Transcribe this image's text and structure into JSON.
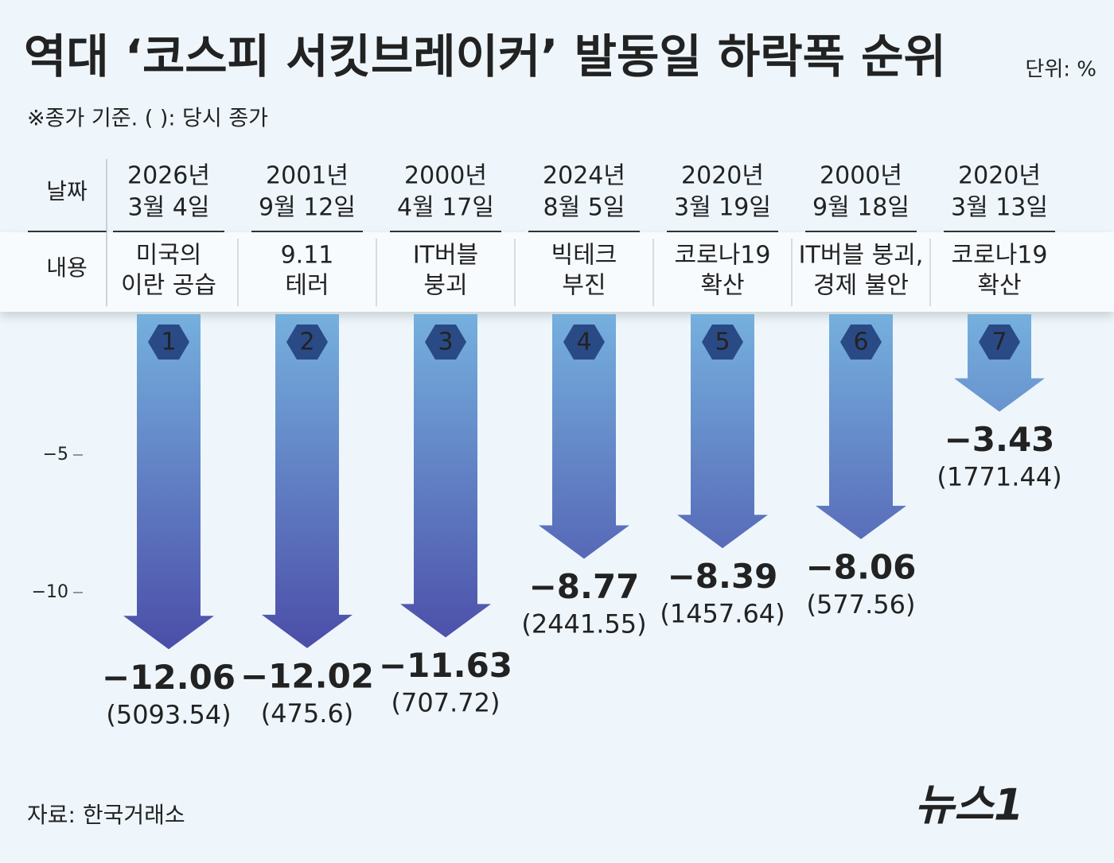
{
  "chart_data": {
    "type": "arrow-bar",
    "title": "역대 ‘코스피 서킷브레이커’ 발동일 하락폭 순위",
    "unit": "단위: %",
    "subtitle": "※종가 기준. ( ): 당시 종가",
    "row_headers": [
      "날짜",
      "내용"
    ],
    "categories": [
      [
        "2026년",
        "3월 4일"
      ],
      [
        "2001년",
        "9월 12일"
      ],
      [
        "2000년",
        "4월 17일"
      ],
      [
        "2024년",
        "8월 5일"
      ],
      [
        "2020년",
        "3월 19일"
      ],
      [
        "2000년",
        "9월 18일"
      ],
      [
        "2020년",
        "3월 13일"
      ]
    ],
    "events": [
      [
        "미국의",
        "이란 공습"
      ],
      [
        "9.11",
        "테러"
      ],
      [
        "IT버블",
        "붕괴"
      ],
      [
        "빅테크",
        "부진"
      ],
      [
        "코로나19",
        "확산"
      ],
      [
        "IT버블 붕괴,",
        "경제 불안"
      ],
      [
        "코로나19",
        "확산"
      ]
    ],
    "ranks": [
      1,
      2,
      3,
      4,
      5,
      6,
      7
    ],
    "values": [
      -12.06,
      -12.02,
      -11.63,
      -8.77,
      -8.39,
      -8.06,
      -3.43
    ],
    "value_labels": [
      "−12.06",
      "−12.02",
      "−11.63",
      "−8.77",
      "−8.39",
      "−8.06",
      "−3.43"
    ],
    "closing_prices": [
      "(5093.54)",
      "(475.6)",
      "(707.72)",
      "(2441.55)",
      "(1457.64)",
      "(577.56)",
      "(1771.44)"
    ],
    "ylim": [
      -14,
      0
    ],
    "yticks": [
      {
        "value": -5,
        "label": "−5"
      },
      {
        "value": -10,
        "label": "−10"
      }
    ],
    "colors": [
      "#75b0de",
      "#4a4aa6"
    ],
    "source": "자료: 한국거래소",
    "logo": "뉴스1"
  }
}
